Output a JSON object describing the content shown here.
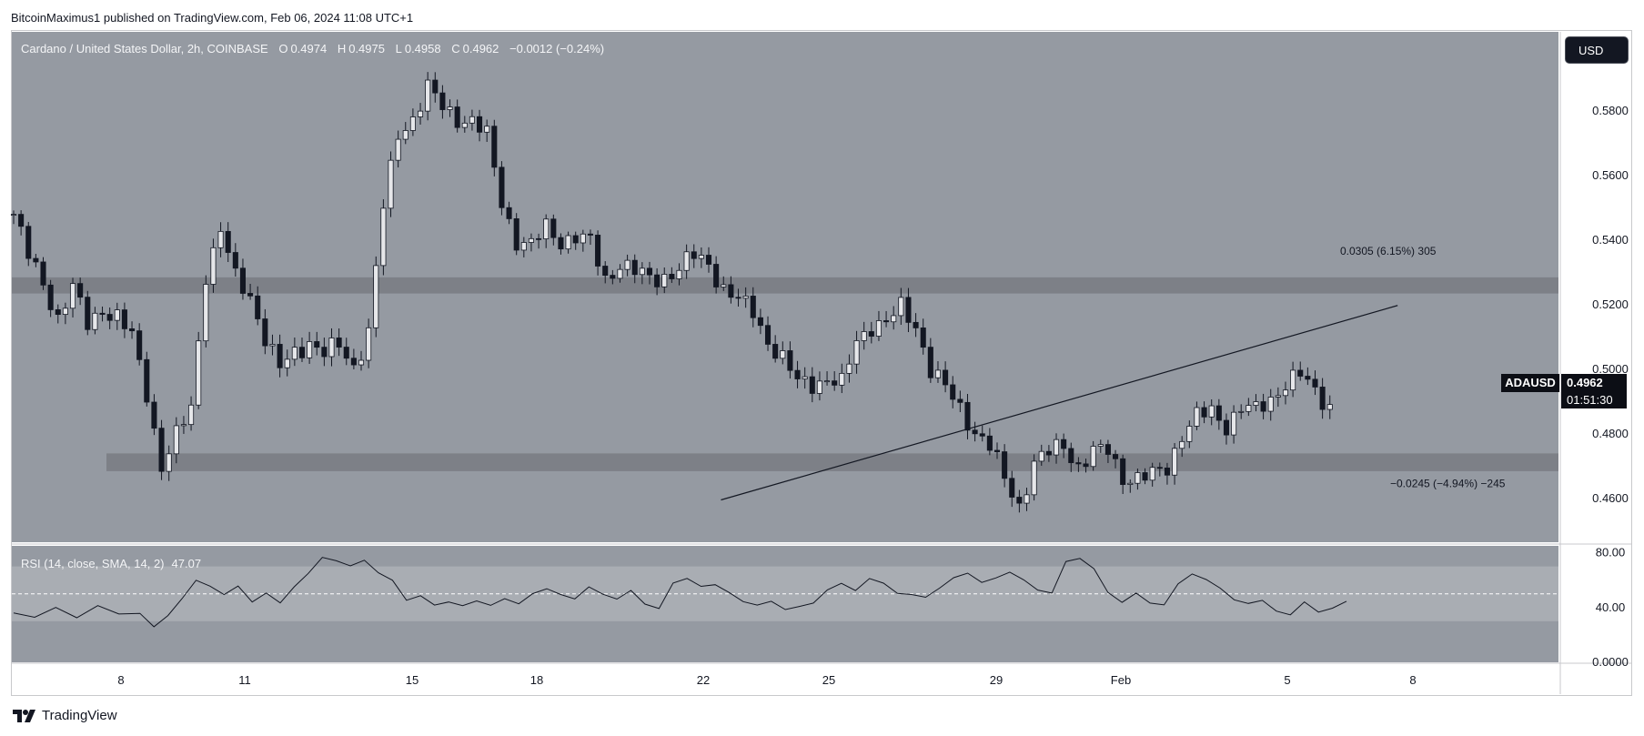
{
  "publisher_line": "BitcoinMaximus1 published on TradingView.com, Feb 06, 2024 11:08 UTC+1",
  "legend": {
    "symbol": "Cardano / United States Dollar, 2h, COINBASE",
    "o_key": "O",
    "o": "0.4974",
    "h_key": "H",
    "h": "0.4975",
    "l_key": "L",
    "l": "0.4958",
    "c_key": "C",
    "c": "0.4962",
    "change": "−0.0012 (−0.24%)"
  },
  "currency_button": "USD",
  "last_price": {
    "symbol": "ADAUSD",
    "price": "0.4962",
    "countdown": "01:51:30"
  },
  "measure_labels": {
    "upper": "0.0305 (6.15%) 305",
    "lower": "−0.0245 (−4.94%) −245"
  },
  "rsi_legend": {
    "title": "RSI (14, close, SMA, 14, 2)",
    "value": "47.07"
  },
  "footer_brand": "TradingView",
  "colors": {
    "chart_bg": "#959aa2",
    "candle": "#131722",
    "zone": "#7d8087",
    "rsi_band": "#a9adb3",
    "text_light": "#f4f5f7"
  },
  "chart_data": [
    {
      "type": "candlestick",
      "symbol": "ADAUSD",
      "interval": "2h",
      "x_tick_labels": [
        "8",
        "11",
        "15",
        "18",
        "22",
        "25",
        "29",
        "Feb",
        "5",
        "8"
      ],
      "y_tick_labels": [
        "0.5800",
        "0.5600",
        "0.5400",
        "0.5200",
        "0.5000",
        "0.4800",
        "0.4600"
      ],
      "ylim": [
        0.4465,
        0.6045
      ],
      "x_count": 181,
      "close_path": [
        [
          0,
          0.548
        ],
        [
          2,
          0.535
        ],
        [
          4,
          0.527
        ],
        [
          6,
          0.516
        ],
        [
          8,
          0.525
        ],
        [
          10,
          0.514
        ],
        [
          12,
          0.519
        ],
        [
          14,
          0.516
        ],
        [
          16,
          0.51
        ],
        [
          18,
          0.493
        ],
        [
          20,
          0.47
        ],
        [
          22,
          0.479
        ],
        [
          24,
          0.488
        ],
        [
          26,
          0.53
        ],
        [
          28,
          0.543
        ],
        [
          30,
          0.528
        ],
        [
          32,
          0.523
        ],
        [
          34,
          0.51
        ],
        [
          36,
          0.5
        ],
        [
          38,
          0.505
        ],
        [
          40,
          0.509
        ],
        [
          42,
          0.505
        ],
        [
          44,
          0.507
        ],
        [
          46,
          0.501
        ],
        [
          48,
          0.512
        ],
        [
          50,
          0.55
        ],
        [
          52,
          0.573
        ],
        [
          54,
          0.578
        ],
        [
          56,
          0.587
        ],
        [
          58,
          0.581
        ],
        [
          60,
          0.578
        ],
        [
          62,
          0.577
        ],
        [
          64,
          0.572
        ],
        [
          66,
          0.552
        ],
        [
          68,
          0.54
        ],
        [
          70,
          0.538
        ],
        [
          72,
          0.544
        ],
        [
          74,
          0.54
        ],
        [
          76,
          0.541
        ],
        [
          78,
          0.539
        ],
        [
          80,
          0.528
        ],
        [
          82,
          0.533
        ],
        [
          84,
          0.53
        ],
        [
          86,
          0.528
        ],
        [
          88,
          0.529
        ],
        [
          90,
          0.531
        ],
        [
          92,
          0.535
        ],
        [
          94,
          0.533
        ],
        [
          96,
          0.525
        ],
        [
          98,
          0.521
        ],
        [
          100,
          0.518
        ],
        [
          102,
          0.509
        ],
        [
          104,
          0.503
        ],
        [
          106,
          0.496
        ],
        [
          108,
          0.496
        ],
        [
          110,
          0.497
        ],
        [
          112,
          0.495
        ],
        [
          114,
          0.509
        ],
        [
          116,
          0.514
        ],
        [
          118,
          0.514
        ],
        [
          120,
          0.519
        ],
        [
          122,
          0.514
        ],
        [
          124,
          0.5
        ],
        [
          126,
          0.494
        ],
        [
          128,
          0.488
        ],
        [
          130,
          0.481
        ],
        [
          132,
          0.476
        ],
        [
          134,
          0.466
        ],
        [
          136,
          0.458
        ],
        [
          138,
          0.471
        ],
        [
          140,
          0.474
        ],
        [
          142,
          0.477
        ],
        [
          144,
          0.47
        ],
        [
          146,
          0.474
        ],
        [
          148,
          0.475
        ],
        [
          150,
          0.467
        ],
        [
          152,
          0.466
        ],
        [
          154,
          0.467
        ],
        [
          156,
          0.47
        ],
        [
          158,
          0.48
        ],
        [
          160,
          0.485
        ],
        [
          162,
          0.487
        ],
        [
          164,
          0.483
        ],
        [
          166,
          0.488
        ],
        [
          168,
          0.487
        ],
        [
          170,
          0.491
        ],
        [
          172,
          0.496
        ],
        [
          174,
          0.498
        ],
        [
          176,
          0.493
        ],
        [
          178,
          0.489
        ]
      ],
      "upper_zone": [
        0.5235,
        0.5285
      ],
      "lower_zone": [
        0.4685,
        0.474
      ],
      "trendline": [
        [
          0.4585,
          0.4596
        ],
        [
          1.0,
          0.5198
        ]
      ]
    },
    {
      "type": "line",
      "name": "RSI (14, close, SMA, 14, 2)",
      "y_tick_labels": [
        "80.00",
        "40.00",
        "0.0000"
      ],
      "ylim": [
        0,
        85
      ],
      "band": [
        30,
        70
      ],
      "midline": 50,
      "last_value": 47.07,
      "values": [
        [
          0,
          36
        ],
        [
          3,
          34
        ],
        [
          6,
          38
        ],
        [
          9,
          35
        ],
        [
          12,
          39
        ],
        [
          15,
          37
        ],
        [
          18,
          35
        ],
        [
          20,
          26
        ],
        [
          22,
          35
        ],
        [
          24,
          48
        ],
        [
          26,
          62
        ],
        [
          28,
          58
        ],
        [
          30,
          52
        ],
        [
          32,
          58
        ],
        [
          34,
          46
        ],
        [
          36,
          52
        ],
        [
          38,
          44
        ],
        [
          40,
          55
        ],
        [
          42,
          64
        ],
        [
          44,
          75
        ],
        [
          46,
          72
        ],
        [
          48,
          68
        ],
        [
          50,
          72
        ],
        [
          52,
          63
        ],
        [
          54,
          58
        ],
        [
          56,
          44
        ],
        [
          58,
          48
        ],
        [
          60,
          42
        ],
        [
          62,
          45
        ],
        [
          64,
          43
        ],
        [
          66,
          47
        ],
        [
          68,
          44
        ],
        [
          70,
          49
        ],
        [
          72,
          45
        ],
        [
          74,
          52
        ],
        [
          76,
          55
        ],
        [
          78,
          50
        ],
        [
          80,
          46
        ],
        [
          82,
          54
        ],
        [
          84,
          48
        ],
        [
          86,
          44
        ],
        [
          88,
          50
        ],
        [
          90,
          40
        ],
        [
          92,
          37
        ],
        [
          94,
          56
        ],
        [
          96,
          60
        ],
        [
          98,
          55
        ],
        [
          100,
          57
        ],
        [
          102,
          52
        ],
        [
          104,
          46
        ],
        [
          106,
          44
        ],
        [
          108,
          47
        ],
        [
          110,
          41
        ],
        [
          112,
          43
        ],
        [
          114,
          45
        ],
        [
          116,
          54
        ],
        [
          118,
          58
        ],
        [
          120,
          52
        ],
        [
          122,
          60
        ],
        [
          124,
          56
        ],
        [
          126,
          48
        ],
        [
          128,
          47
        ],
        [
          130,
          45
        ],
        [
          132,
          52
        ],
        [
          134,
          60
        ],
        [
          136,
          64
        ],
        [
          138,
          58
        ],
        [
          140,
          62
        ],
        [
          142,
          67
        ],
        [
          144,
          62
        ],
        [
          146,
          55
        ],
        [
          148,
          53
        ],
        [
          150,
          76
        ],
        [
          152,
          78
        ],
        [
          154,
          70
        ],
        [
          156,
          52
        ],
        [
          158,
          44
        ],
        [
          160,
          50
        ],
        [
          162,
          42
        ],
        [
          164,
          40
        ],
        [
          166,
          55
        ],
        [
          168,
          62
        ],
        [
          170,
          58
        ],
        [
          172,
          52
        ],
        [
          174,
          44
        ],
        [
          176,
          42
        ],
        [
          178,
          45
        ],
        [
          180,
          38
        ],
        [
          182,
          36
        ],
        [
          184,
          46
        ],
        [
          186,
          39
        ],
        [
          188,
          42
        ],
        [
          190,
          47
        ]
      ]
    }
  ]
}
